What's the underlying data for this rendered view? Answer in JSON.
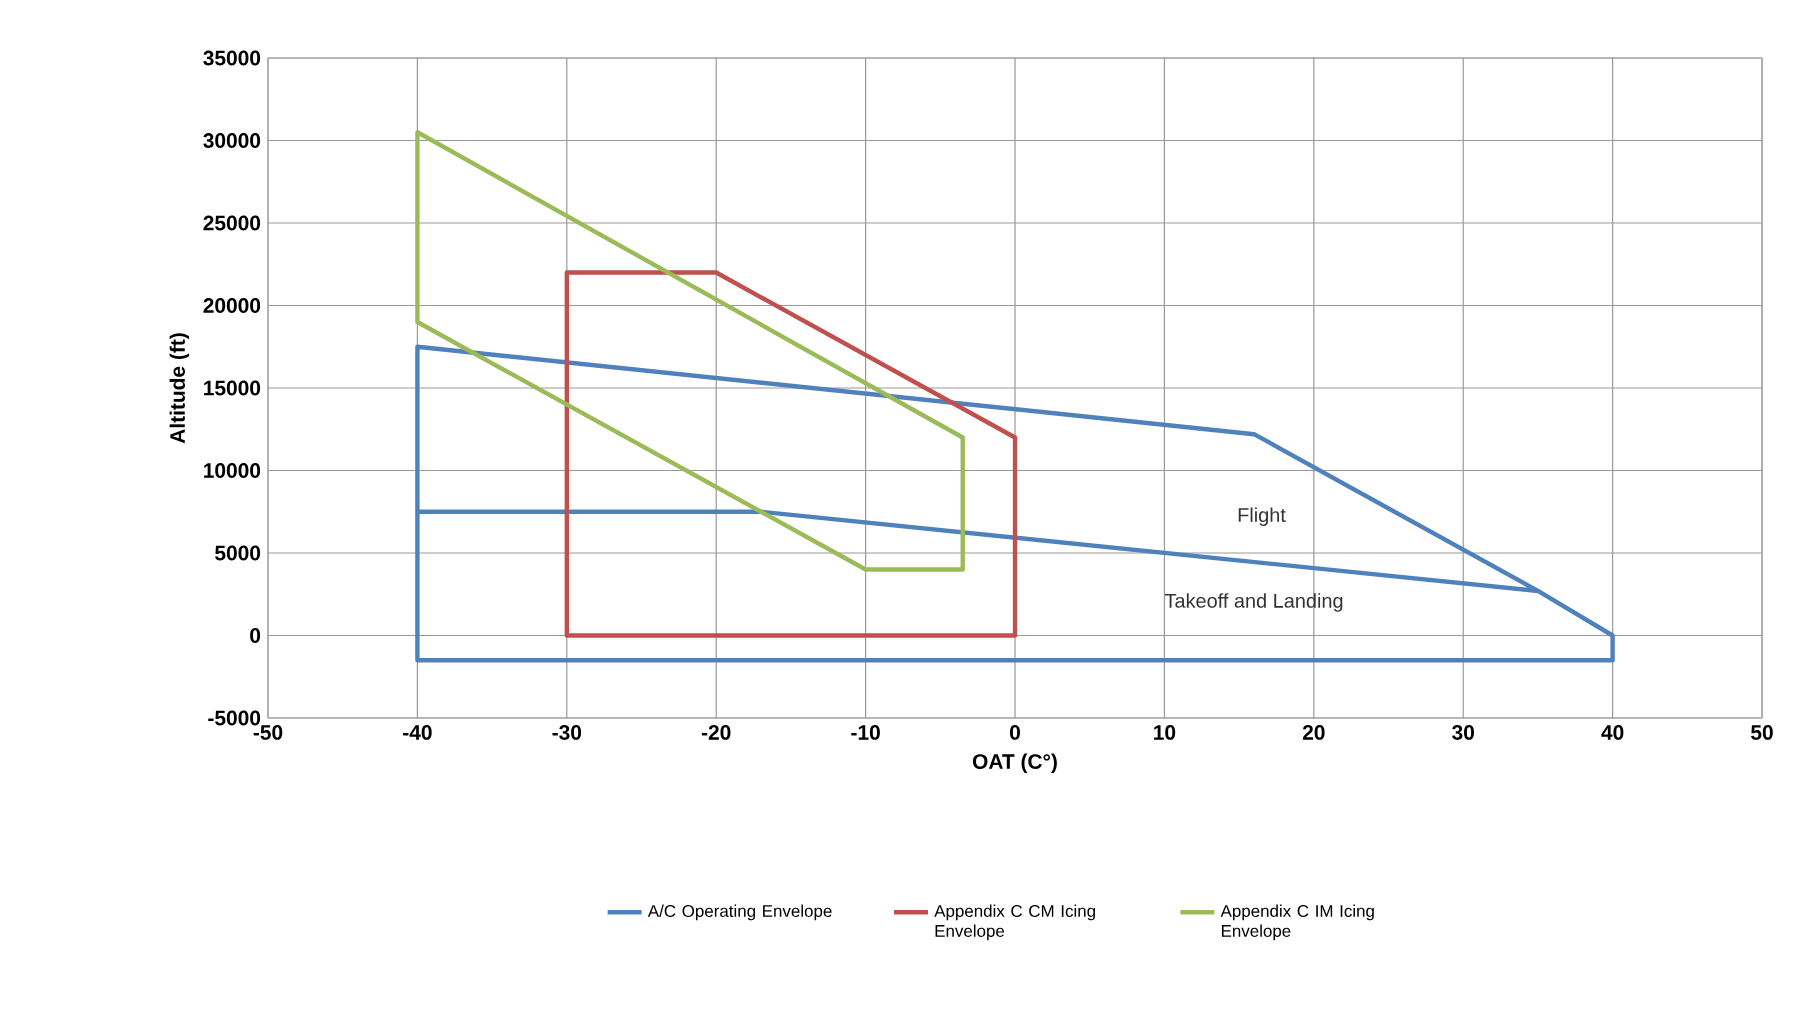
{
  "chart_data": {
    "type": "line",
    "xlabel": "OAT (C°)",
    "ylabel": "Altitude (ft)",
    "xlim": [
      -50,
      50
    ],
    "xticks": [
      -50,
      -40,
      -30,
      -20,
      -10,
      0,
      10,
      20,
      30,
      40,
      50
    ],
    "ylim": [
      -5000,
      35000
    ],
    "yticks": [
      -5000,
      0,
      5000,
      10000,
      15000,
      20000,
      25000,
      30000,
      35000
    ],
    "grid": true,
    "legend": "bottom",
    "series": [
      {
        "name": "A/C Operating Envelope",
        "color": "#4f81bd",
        "x": [
          -40,
          -17,
          35,
          16,
          -40,
          -40,
          40,
          40,
          35
        ],
        "values": [
          7500,
          7500,
          2700,
          12200,
          17500,
          -1500,
          -1500,
          0,
          2700
        ]
      },
      {
        "name": "Appendix C CM Icing Envelope",
        "color": "#c0504d",
        "x": [
          -30,
          0,
          0,
          -20,
          -30,
          -30,
          0
        ],
        "values": [
          0,
          0,
          12000,
          22000,
          22000,
          0,
          0
        ]
      },
      {
        "name": "Appendix C IM Icing Envelope",
        "color": "#9bbb59",
        "x": [
          -40,
          -40,
          -10,
          -3.5,
          -3.5,
          -40,
          -40
        ],
        "values": [
          30500,
          19000,
          4000,
          4000,
          12000,
          30500,
          19000
        ]
      }
    ],
    "annotations": [
      "Flight",
      "Takeoff and Landing"
    ]
  }
}
